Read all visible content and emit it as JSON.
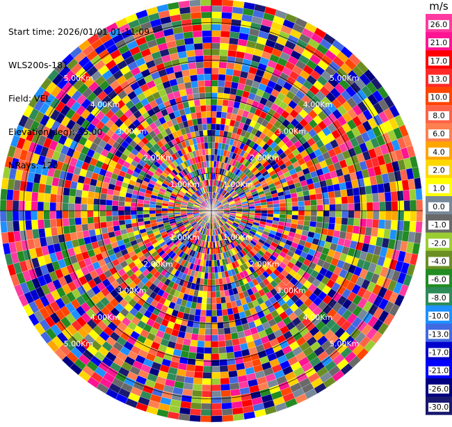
{
  "info": {
    "start_time": "Start time: 2026/01/01 01:11:09",
    "site": "WLS200s-181",
    "field": "Field: VEL",
    "elevation": "Elevation(deg): 35.00",
    "nrays": "NRays: 120"
  },
  "colorbar": {
    "unit": "m/s",
    "ticks": [
      "26.0",
      "21.0",
      "17.0",
      "13.0",
      "10.0",
      "8.0",
      "6.0",
      "4.0",
      "2.0",
      "1.0",
      "0.0",
      "-1.0",
      "-2.0",
      "-4.0",
      "-6.0",
      "-8.0",
      "-10.0",
      "-13.0",
      "-17.0",
      "-21.0",
      "-26.0",
      "-30.0"
    ],
    "colors": [
      "#ff3aa0",
      "#ff1493",
      "#ff0000",
      "#ff2a2a",
      "#ff4500",
      "#ff6347",
      "#ff7f50",
      "#ffa500",
      "#ffd700",
      "#ffff00",
      "#778899",
      "#696969",
      "#9acd32",
      "#6b8e23",
      "#228b22",
      "#2e8b57",
      "#1e90ff",
      "#4169e1",
      "#0000cd",
      "#0000ff",
      "#000080",
      "#191970"
    ]
  },
  "chart_data": {
    "type": "heatmap",
    "subtype": "polar-ppi",
    "field": "VEL",
    "units": "m/s",
    "elevation_deg": 35.0,
    "n_rays": 120,
    "range_rings_km": [
      1,
      2,
      3,
      4,
      5
    ],
    "ring_labels": [
      "1.00Km",
      "2.00Km",
      "3.00Km",
      "4.00Km",
      "5.00Km"
    ],
    "colorbar_range": [
      -30,
      26
    ]
  }
}
